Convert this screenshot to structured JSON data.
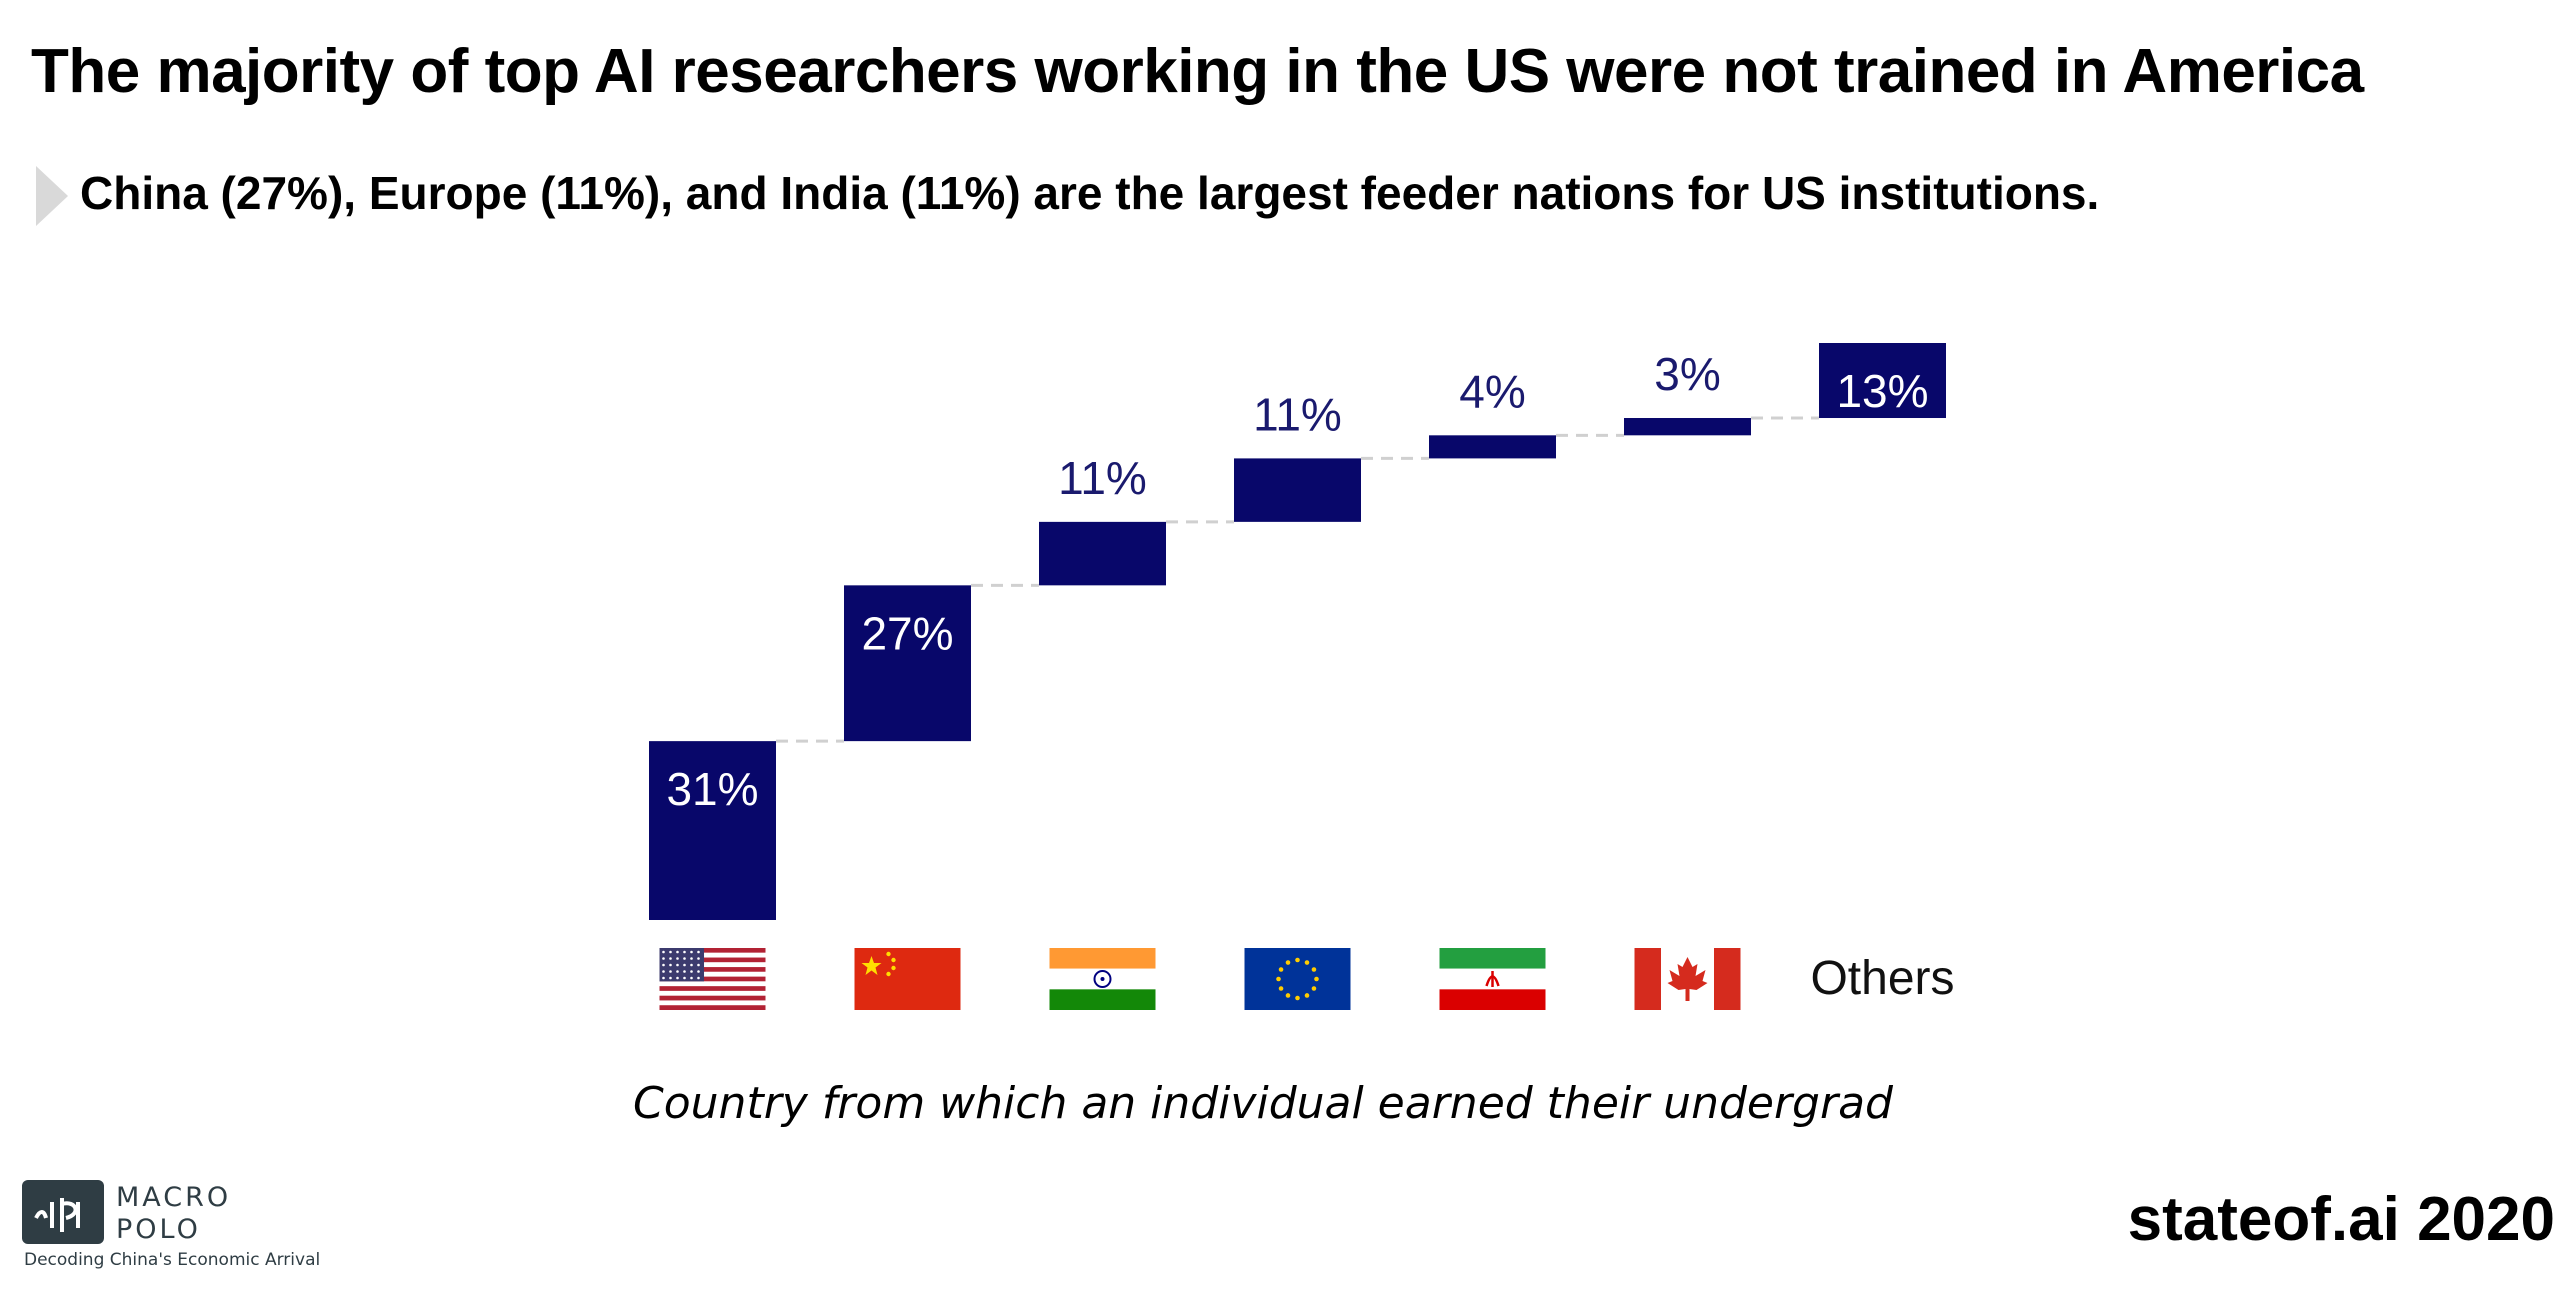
{
  "slide": {
    "title": "The majority of top AI researchers working in the US were not trained in America",
    "subtitle": "China (27%), Europe (11%), and India (11%) are the largest feeder nations for US institutions.",
    "xlabel": "Country from which an individual earned their undergrad",
    "footer": "stateof.ai 2020"
  },
  "logo": {
    "line1": "MACRO",
    "line2": "POLO",
    "tagline": "Decoding China's Economic Arrival"
  },
  "colors": {
    "bar": "#08076a",
    "label_inside": "#ffffff",
    "label_outside": "#1a1a6e",
    "connector": "#d0d0d0"
  },
  "chart_data": {
    "type": "waterfall",
    "title": "",
    "xlabel": "Country from which an individual earned their undergrad",
    "ylabel": "",
    "ylim": [
      0,
      100
    ],
    "unit": "%",
    "categories": [
      "United States",
      "China",
      "India",
      "Europe",
      "Iran",
      "Canada",
      "Others"
    ],
    "flag_icons": [
      "us-flag-icon",
      "china-flag-icon",
      "india-flag-icon",
      "eu-flag-icon",
      "iran-flag-icon",
      "canada-flag-icon",
      null
    ],
    "tick_labels": [
      "",
      "",
      "",
      "",
      "",
      "",
      "Others"
    ],
    "values": [
      31,
      27,
      11,
      11,
      4,
      3,
      13
    ],
    "labels": [
      "31%",
      "27%",
      "11%",
      "11%",
      "4%",
      "3%",
      "13%"
    ],
    "label_inside": [
      true,
      true,
      false,
      false,
      false,
      false,
      true
    ]
  }
}
